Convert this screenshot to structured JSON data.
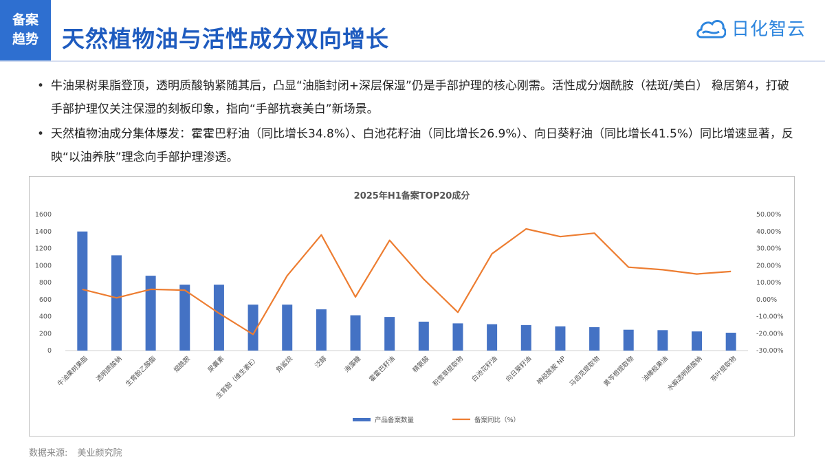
{
  "header": {
    "tag_line1": "备案",
    "tag_line2": "趋势",
    "title": "天然植物油与活性成分双向增长",
    "logo_text": "日化智云"
  },
  "bullets": [
    "牛油果树果脂登顶，透明质酸钠紧随其后，凸显“油脂封闭+深层保湿”仍是手部护理的核心刚需。活性成分烟酰胺（祛斑/美白） 稳居第4，打破手部护理仅关注保湿的刻板印象，指向“手部抗衰美白”新场景。",
    "天然植物油成分集体爆发：霍霍巴籽油（同比增长34.8%）、白池花籽油（同比增长26.9%）、向日葵籽油（同比增长41.5%）同比增速显著，反映“以油养肤”理念向手部护理渗透。"
  ],
  "footer": {
    "source_label": "数据来源:",
    "source_value": "美业颜究院"
  },
  "colors": {
    "accent": "#2e6fd0",
    "title": "#1e5bbf",
    "bar": "#4472c4",
    "line": "#ed7d31"
  },
  "chart_data": {
    "type": "bar+line",
    "title": "2025年H1备案TOP20成分",
    "categories": [
      "牛油果树果脂",
      "透明质酸钠",
      "生育酚乙酸酯",
      "烟酰胺",
      "尿囊素",
      "生育酚（维生素E）",
      "角鲨烷",
      "泛醇",
      "海藻糖",
      "霍霍巴籽油",
      "精氨酸",
      "积雪草提取物",
      "白池花籽油",
      "向日葵籽油",
      "神经酰胺 NP",
      "马齿苋提取物",
      "黄芩根提取物",
      "油橄榄果油",
      "水解透明质酸钠",
      "茶叶提取物"
    ],
    "series": [
      {
        "name": "产品备案数量",
        "type": "bar",
        "axis": "left",
        "values": [
          1400,
          1120,
          880,
          775,
          775,
          540,
          540,
          485,
          415,
          395,
          340,
          320,
          310,
          300,
          285,
          275,
          245,
          240,
          225,
          210
        ]
      },
      {
        "name": "备案同比（%）",
        "type": "line",
        "axis": "right",
        "values": [
          6,
          1,
          6,
          5.5,
          -8,
          -20.5,
          14,
          38,
          1.5,
          34.8,
          12,
          -7.5,
          26.9,
          41.5,
          37,
          39,
          19,
          17.5,
          15,
          16.5
        ]
      }
    ],
    "y_left": {
      "min": 0,
      "max": 1600,
      "step": 200
    },
    "y_right": {
      "min": -30,
      "max": 50,
      "step": 10,
      "tick_suffix": "%",
      "decimals": 2
    },
    "legend_position": "bottom",
    "grid": false
  }
}
